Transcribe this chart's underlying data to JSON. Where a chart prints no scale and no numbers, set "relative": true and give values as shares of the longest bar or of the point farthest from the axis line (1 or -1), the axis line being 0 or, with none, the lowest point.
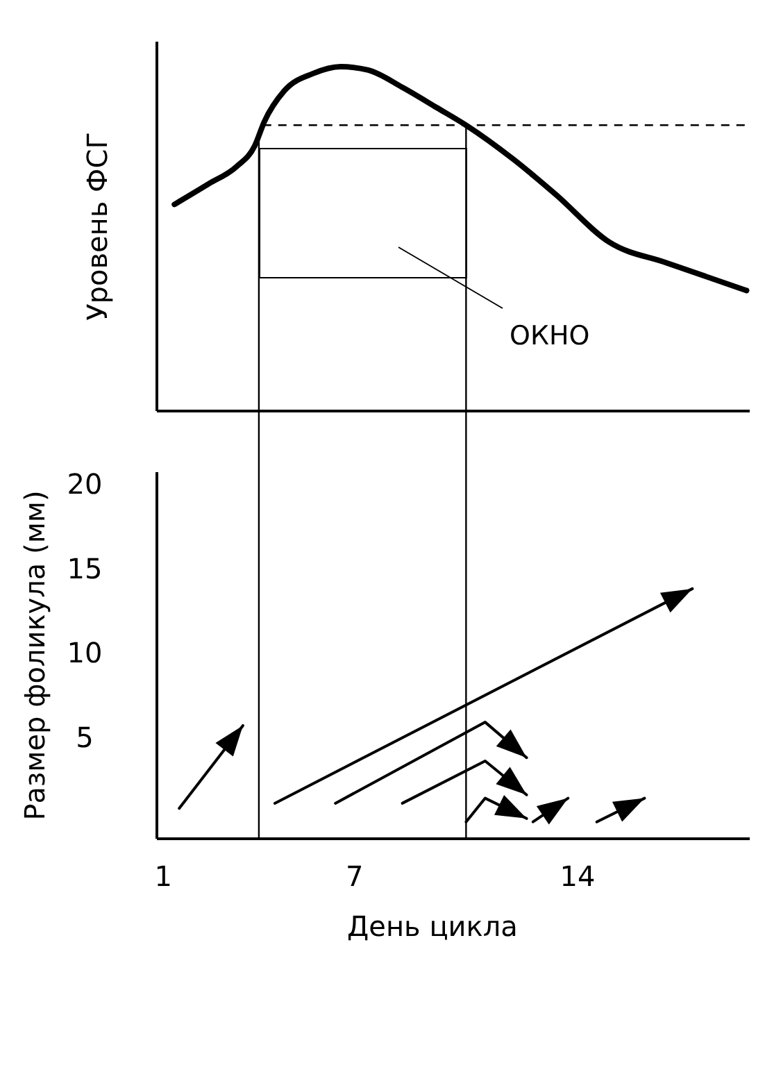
{
  "chart_data": [
    {
      "type": "line",
      "relative": true,
      "ylabel": "Уровень ФСГ",
      "xlim": [
        0.8,
        19.4
      ],
      "x": [
        1.35,
        2.43,
        3.3,
        3.87,
        4.17,
        4.8,
        5.7,
        6.57,
        7.43,
        8.5,
        9.6,
        10.5,
        12.0,
        13.3,
        15.0,
        16.8,
        19.3
      ],
      "values": [
        0.6,
        0.66,
        0.71,
        0.77,
        0.84,
        0.93,
        0.98,
        1.0,
        0.99,
        0.94,
        0.88,
        0.83,
        0.73,
        0.63,
        0.49,
        0.43,
        0.35
      ],
      "color": "#000000",
      "ref_lines": [
        {
          "axis": "y",
          "value": 0.83,
          "line_style": "dashed"
        },
        {
          "axis": "x",
          "value": 4
        },
        {
          "axis": "x",
          "value": 10.5
        }
      ],
      "annotations": [
        "ОКНО"
      ]
    },
    {
      "type": "line",
      "xlabel": "День цикла",
      "ylabel": "Размер фоликула (мм)",
      "xlim": [
        0.8,
        19.4
      ],
      "ylim": [
        -1,
        20.7
      ],
      "xticks": [
        1,
        7,
        14
      ],
      "yticks": [
        5,
        10,
        15,
        20
      ],
      "ref_lines": [
        {
          "axis": "x",
          "value": 4
        },
        {
          "axis": "x",
          "value": 10.5
        }
      ],
      "series": [
        {
          "color": "#000000",
          "x": [
            1.5,
            3.5
          ],
          "values": [
            0.8,
            5.7
          ]
        },
        {
          "color": "#000000",
          "x": [
            4.5,
            17.6
          ],
          "values": [
            1.1,
            13.8
          ]
        },
        {
          "color": "#000000",
          "x": [
            6.4,
            11.1,
            12.4
          ],
          "values": [
            1.1,
            5.9,
            3.8
          ]
        },
        {
          "color": "#000000",
          "x": [
            8.5,
            11.1,
            12.4
          ],
          "values": [
            1.1,
            3.6,
            1.6
          ]
        },
        {
          "color": "#000000",
          "x": [
            10.5,
            11.1,
            12.4
          ],
          "values": [
            0.0,
            1.4,
            0.2
          ]
        },
        {
          "color": "#000000",
          "x": [
            12.6,
            13.7
          ],
          "values": [
            0.0,
            1.4
          ]
        },
        {
          "color": "#000000",
          "x": [
            14.6,
            16.1
          ],
          "values": [
            0.0,
            1.4
          ]
        }
      ]
    }
  ]
}
